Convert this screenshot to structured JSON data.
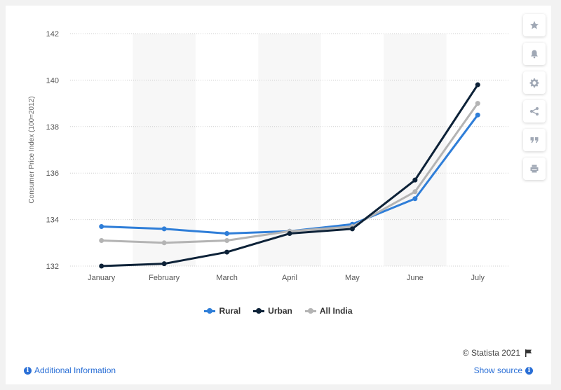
{
  "chart_data": {
    "type": "line",
    "categories": [
      "January",
      "February",
      "March",
      "April",
      "May",
      "June",
      "July"
    ],
    "series": [
      {
        "name": "Rural",
        "color": "#2f7ed8",
        "values": [
          133.7,
          133.6,
          133.4,
          133.5,
          133.8,
          134.9,
          138.5
        ]
      },
      {
        "name": "Urban",
        "color": "#0d2238",
        "values": [
          132.0,
          132.1,
          132.6,
          133.4,
          133.6,
          135.7,
          139.8
        ]
      },
      {
        "name": "All India",
        "color": "#b4b4b4",
        "values": [
          133.1,
          133.0,
          133.1,
          133.5,
          133.7,
          135.2,
          139.0
        ]
      }
    ],
    "ylabel": "Consumer Price Index (100=2012)",
    "ylim": [
      132,
      142
    ],
    "yticks": [
      132,
      134,
      136,
      138,
      140,
      142
    ],
    "grid": true,
    "legend": "bottom"
  },
  "footer": {
    "copyright": "© Statista 2021",
    "additional_info": "Additional Information",
    "show_source": "Show source"
  },
  "sidebar_icons": [
    "star-icon",
    "bell-icon",
    "gear-icon",
    "share-icon",
    "quote-icon",
    "print-icon"
  ]
}
